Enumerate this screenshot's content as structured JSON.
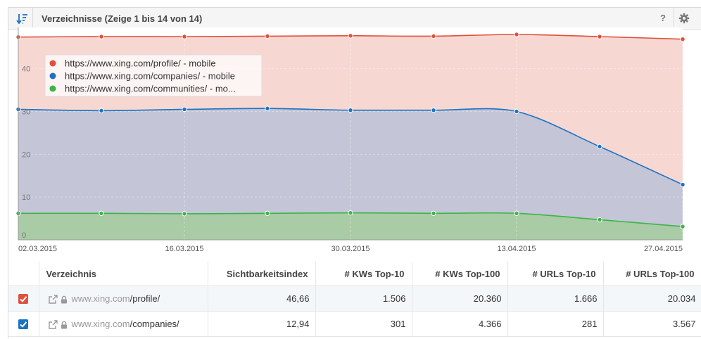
{
  "header": {
    "title": "Verzeichnisse (Zeige 1 bis 14 von 14)",
    "help_label": "?"
  },
  "chart_data": {
    "type": "area",
    "x": [
      "02.03.2015",
      "09.03.2015",
      "16.03.2015",
      "23.03.2015",
      "30.03.2015",
      "06.04.2015",
      "13.04.2015",
      "20.04.2015",
      "27.04.2015"
    ],
    "x_tick_labels": [
      "02.03.2015",
      "16.03.2015",
      "30.03.2015",
      "13.04.2015",
      "27.04.2015"
    ],
    "y_tick_labels": [
      "0",
      "10",
      "20",
      "30",
      "40"
    ],
    "ylim": [
      0,
      48
    ],
    "grid": true,
    "legend_position": "top-left",
    "series": [
      {
        "name": "https://www.xing.com/profile/ - mobile",
        "legend_label": "https://www.xing.com/profile/ - mobile",
        "color": "#e0503c",
        "fill": "#f7d7d2",
        "values": [
          47.4,
          47.5,
          47.5,
          47.6,
          47.7,
          47.6,
          48.0,
          47.5,
          46.9
        ]
      },
      {
        "name": "https://www.xing.com/companies/ - mobile",
        "legend_label": "https://www.xing.com/companies/ - mobile",
        "color": "#1a73c4",
        "fill": "#c4c5d6",
        "values": [
          30.5,
          30.2,
          30.5,
          30.7,
          30.3,
          30.3,
          30.0,
          21.8,
          12.9
        ]
      },
      {
        "name": "https://www.xing.com/communities/ - mobile",
        "legend_label": "https://www.xing.com/communities/ - mo...",
        "color": "#3ab54a",
        "fill": "#a9cba5",
        "values": [
          6.2,
          6.2,
          6.1,
          6.2,
          6.3,
          6.2,
          6.2,
          4.7,
          3.1
        ]
      }
    ]
  },
  "table": {
    "columns": [
      "Verzeichnis",
      "Sichtbarkeitsindex",
      "# KWs Top-10",
      "# KWs Top-100",
      "# URLs Top-10",
      "# URLs Top-100"
    ],
    "rows": [
      {
        "checkbox_color": "#e0503c",
        "host": "www.xing.com",
        "path": "/profile/",
        "values": [
          "46,66",
          "1.506",
          "20.360",
          "1.666",
          "20.034"
        ]
      },
      {
        "checkbox_color": "#1a73c4",
        "host": "www.xing.com",
        "path": "/companies/",
        "values": [
          "12,94",
          "301",
          "4.366",
          "281",
          "3.567"
        ]
      }
    ]
  }
}
